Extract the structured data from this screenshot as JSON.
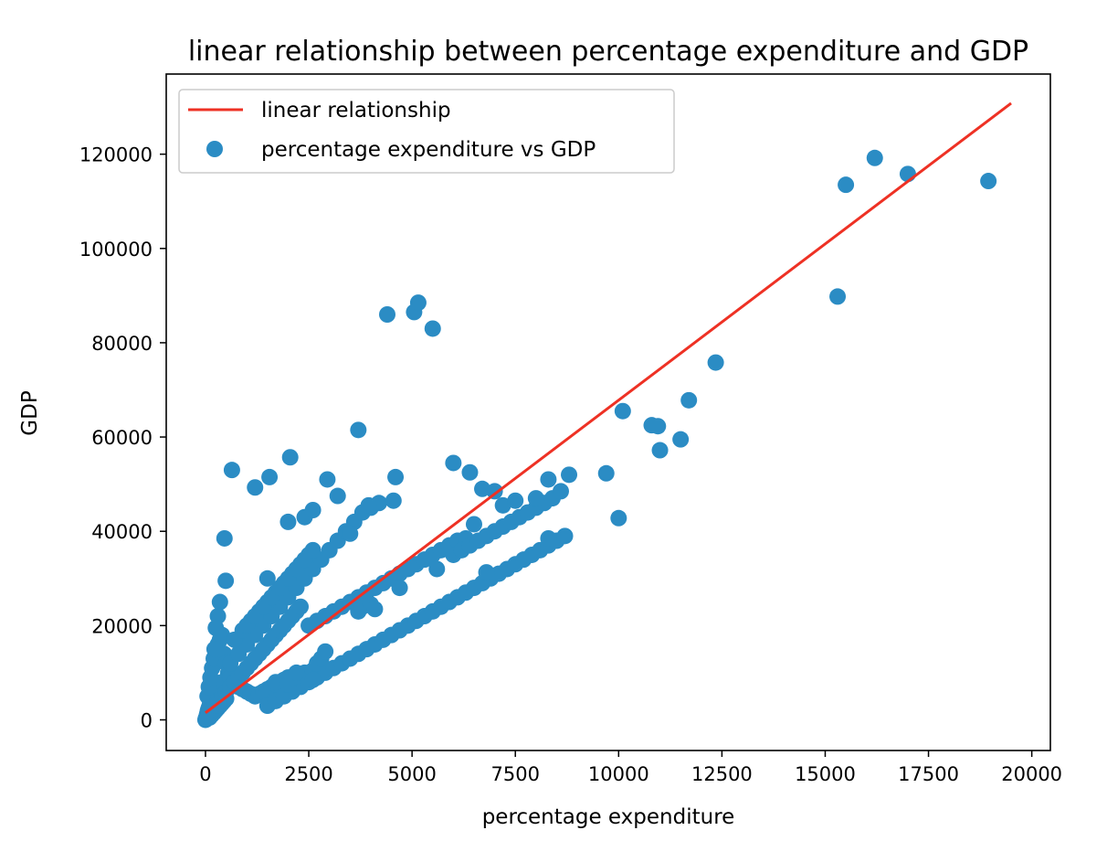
{
  "chart_data": {
    "type": "scatter",
    "title": "linear relationship between percentage expenditure and GDP",
    "xlabel": "percentage expenditure",
    "ylabel": "GDP",
    "xlim": [
      -950,
      20450
    ],
    "ylim": [
      -6500,
      137000
    ],
    "xticks": [
      0,
      2500,
      5000,
      7500,
      10000,
      12500,
      15000,
      17500,
      20000
    ],
    "yticks": [
      0,
      20000,
      40000,
      60000,
      80000,
      100000,
      120000
    ],
    "grid": false,
    "legend_position": "top-left",
    "series": [
      {
        "name": "linear relationship",
        "kind": "line",
        "color": "#ee3124",
        "x": [
          0,
          19500
        ],
        "y": [
          1500,
          130800
        ]
      },
      {
        "name": "percentage expenditure vs GDP",
        "kind": "scatter",
        "color": "#2b8cc4",
        "x": [
          0,
          5,
          10,
          20,
          30,
          40,
          50,
          60,
          80,
          100,
          120,
          150,
          200,
          250,
          300,
          350,
          400,
          50,
          80,
          120,
          160,
          200,
          250,
          300,
          350,
          400,
          450,
          500,
          550,
          600,
          700,
          800,
          900,
          1000,
          1100,
          1200,
          1300,
          1400,
          1500,
          1600,
          1700,
          1800,
          1900,
          2000,
          2200,
          2400,
          2600,
          100,
          150,
          200,
          250,
          300,
          350,
          400,
          450,
          500,
          200,
          300,
          400,
          500,
          600,
          700,
          800,
          900,
          1000,
          1100,
          1200,
          1300,
          1400,
          1500,
          1600,
          1700,
          1800,
          1900,
          2000,
          2100,
          2200,
          2300,
          2500,
          2700,
          2900,
          3100,
          3300,
          3500,
          3700,
          3900,
          4100,
          4300,
          4500,
          4700,
          4900,
          5100,
          5300,
          5500,
          5700,
          5900,
          6100,
          6300,
          600,
          800,
          1000,
          1200,
          1400,
          1600,
          1800,
          2000,
          2200,
          2400,
          2600,
          2800,
          3000,
          3200,
          3400,
          3600,
          3800,
          4000,
          4200,
          700,
          900,
          1100,
          1300,
          1500,
          1700,
          1900,
          2100,
          2300,
          2500,
          1000,
          1200,
          1400,
          1600,
          1800,
          2000,
          2200,
          2400,
          2600,
          1500,
          1700,
          1900,
          2100,
          2300,
          2500,
          2700,
          2900,
          3100,
          3300,
          3500,
          3700,
          3900,
          4100,
          4300,
          4500,
          4700,
          4900,
          5100,
          5300,
          5500,
          5700,
          5900,
          6100,
          6300,
          6500,
          6700,
          6900,
          7100,
          7300,
          7500,
          7700,
          7900,
          8100,
          8300,
          8500,
          8700,
          6000,
          6200,
          6400,
          6600,
          6800,
          7000,
          7200,
          7400,
          7600,
          7800,
          8000,
          8200,
          8400,
          1500,
          1550,
          2050,
          2950,
          3200,
          3700,
          3950,
          4600,
          4550,
          5050,
          5150,
          5500,
          4400,
          1200,
          640,
          460,
          490,
          350,
          300,
          250,
          220,
          1700,
          2000,
          2100,
          2200,
          2600,
          2700,
          2800,
          2900,
          3700,
          3800,
          4000,
          4100,
          6000,
          6400,
          6700,
          7000,
          7200,
          7500,
          8000,
          8300,
          8600,
          8800,
          9700,
          10000,
          10100,
          10800,
          11000,
          10950,
          11500,
          11700,
          12350,
          15300,
          15500,
          16200,
          17000,
          18950,
          8300,
          6500,
          6800,
          5600,
          4700,
          3500,
          2000,
          2400,
          2600
        ],
        "y": [
          0,
          100,
          300,
          500,
          800,
          1200,
          1500,
          2000,
          2500,
          3000,
          3500,
          4000,
          5000,
          5500,
          6000,
          7000,
          8000,
          5000,
          7000,
          9000,
          11000,
          13000,
          15000,
          16000,
          17000,
          18000,
          14000,
          12000,
          10000,
          9000,
          8000,
          7000,
          6500,
          6000,
          5500,
          5000,
          5500,
          6000,
          6500,
          7000,
          7500,
          8000,
          8500,
          9000,
          9500,
          10000,
          10500,
          500,
          1000,
          1500,
          2000,
          2500,
          3000,
          3500,
          4000,
          4500,
          3000,
          4000,
          5000,
          6000,
          7000,
          8000,
          9000,
          10000,
          11000,
          12000,
          13000,
          14000,
          15000,
          16000,
          17000,
          18000,
          19000,
          20000,
          21000,
          22000,
          23000,
          24000,
          20000,
          21000,
          22000,
          23000,
          24000,
          25000,
          26000,
          27000,
          28000,
          29000,
          30000,
          31000,
          32000,
          33000,
          34000,
          35000,
          36000,
          37000,
          38000,
          38500,
          12000,
          14000,
          16000,
          18000,
          20000,
          22000,
          24000,
          26000,
          28000,
          30000,
          32000,
          34000,
          36000,
          38000,
          40000,
          42000,
          44000,
          45000,
          46000,
          17000,
          19000,
          21000,
          23000,
          25000,
          27000,
          29000,
          31000,
          33000,
          35000,
          20000,
          22000,
          24000,
          26000,
          28000,
          30000,
          32000,
          34000,
          36000,
          3000,
          4000,
          5000,
          6000,
          7000,
          8000,
          9000,
          10000,
          11000,
          12000,
          13000,
          14000,
          15000,
          16000,
          17000,
          18000,
          19000,
          20000,
          21000,
          22000,
          23000,
          24000,
          25000,
          26000,
          27000,
          28000,
          29000,
          30000,
          31000,
          32000,
          33000,
          34000,
          35000,
          36000,
          37000,
          38000,
          39000,
          35000,
          36000,
          37000,
          38000,
          39000,
          40000,
          41000,
          42000,
          43000,
          44000,
          45000,
          46000,
          47000,
          30000,
          51500,
          55700,
          51000,
          47500,
          61500,
          45500,
          51500,
          46500,
          86500,
          88500,
          83000,
          86000,
          49300,
          53000,
          38500,
          29500,
          25000,
          22000,
          19500,
          15000,
          8000,
          7500,
          9000,
          10000,
          8500,
          12000,
          13000,
          14500,
          23000,
          24000,
          24500,
          23500,
          54500,
          52500,
          49000,
          48500,
          45500,
          46500,
          47000,
          51000,
          48500,
          52000,
          52300,
          42800,
          65500,
          62500,
          57200,
          62300,
          59500,
          67800,
          75800,
          89800,
          113500,
          119200,
          115800,
          114300,
          38500,
          41500,
          31300,
          32000,
          28000,
          39500,
          42000,
          43000,
          44500
        ]
      }
    ]
  }
}
